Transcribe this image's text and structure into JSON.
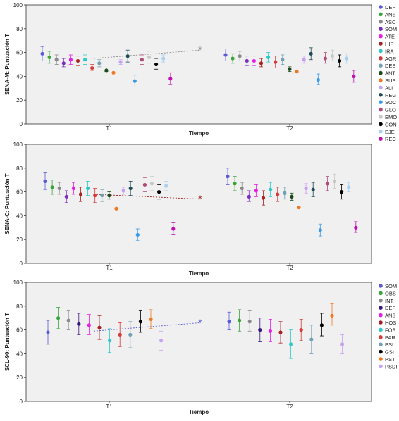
{
  "chart_data": [
    {
      "type": "scatter",
      "ylabel": "SENA-M: Puntuación T",
      "xlabel": "Tiempo",
      "categories": [
        "T1",
        "T2"
      ],
      "ylim": [
        0,
        100
      ],
      "yticks": [
        0,
        20,
        40,
        60,
        80,
        100
      ],
      "legend": "right",
      "mean_marker": {
        "T1": 55,
        "T2": 62,
        "color": "#888888"
      },
      "series": [
        {
          "name": "DEP",
          "color": "#5b5bd6",
          "T1": {
            "mean": 59,
            "lo": 53,
            "hi": 65
          },
          "T2": {
            "mean": 58,
            "lo": 53,
            "hi": 63
          }
        },
        {
          "name": "ANS",
          "color": "#3aa63a",
          "T1": {
            "mean": 56,
            "lo": 51,
            "hi": 61
          },
          "T2": {
            "mean": 55,
            "lo": 51,
            "hi": 59
          }
        },
        {
          "name": "ASC",
          "color": "#8a8a8a",
          "T1": {
            "mean": 54,
            "lo": 50,
            "hi": 58
          },
          "T2": {
            "mean": 57,
            "lo": 53,
            "hi": 61
          }
        },
        {
          "name": "SOM",
          "color": "#7a2ec0",
          "T1": {
            "mean": 51,
            "lo": 48,
            "hi": 55
          },
          "T2": {
            "mean": 53,
            "lo": 49,
            "hi": 57
          }
        },
        {
          "name": "ATE",
          "color": "#e61ee6",
          "T1": {
            "mean": 54,
            "lo": 50,
            "hi": 58
          },
          "T2": {
            "mean": 53,
            "lo": 49,
            "hi": 57
          }
        },
        {
          "name": "HIP",
          "color": "#aa1f1f",
          "T1": {
            "mean": 53,
            "lo": 49,
            "hi": 57
          },
          "T2": {
            "mean": 51,
            "lo": 48,
            "hi": 55
          }
        },
        {
          "name": "IRA",
          "color": "#2ec8c8",
          "T1": {
            "mean": 54,
            "lo": 50,
            "hi": 58
          },
          "T2": {
            "mean": 56,
            "lo": 52,
            "hi": 60
          }
        },
        {
          "name": "AGR",
          "color": "#d63a3a",
          "T1": {
            "mean": 47,
            "lo": 45,
            "hi": 50
          },
          "T2": {
            "mean": 52,
            "lo": 47,
            "hi": 57
          }
        },
        {
          "name": "DES",
          "color": "#6fa0b4",
          "T1": {
            "mean": 51,
            "lo": 48,
            "hi": 54
          },
          "T2": {
            "mean": 54,
            "lo": 50,
            "hi": 58
          }
        },
        {
          "name": "ANT",
          "color": "#1c4a1c",
          "T1": {
            "mean": 45,
            "lo": 44,
            "hi": 47
          },
          "T2": {
            "mean": 46,
            "lo": 44,
            "hi": 48
          }
        },
        {
          "name": "SUS",
          "color": "#f07820",
          "T1": {
            "mean": 43,
            "lo": 43,
            "hi": 43
          },
          "T2": {
            "mean": 44,
            "lo": 44,
            "hi": 44
          }
        },
        {
          "name": "ALI",
          "color": "#c8a0f0",
          "T1": {
            "mean": 52,
            "lo": 50,
            "hi": 54
          },
          "T2": {
            "mean": 54,
            "lo": 51,
            "hi": 57
          }
        },
        {
          "name": "REG",
          "color": "#1e4a5a",
          "T1": {
            "mean": 57,
            "lo": 52,
            "hi": 62
          },
          "T2": {
            "mean": 59,
            "lo": 54,
            "hi": 64
          }
        },
        {
          "name": "SOC",
          "color": "#3a9ae6",
          "T1": {
            "mean": 36,
            "lo": 31,
            "hi": 41
          },
          "T2": {
            "mean": 37,
            "lo": 33,
            "hi": 42
          }
        },
        {
          "name": "GLO",
          "color": "#b04a78",
          "T1": {
            "mean": 54,
            "lo": 50,
            "hi": 58
          },
          "T2": {
            "mean": 55,
            "lo": 51,
            "hi": 60
          }
        },
        {
          "name": "EMO",
          "color": "#c8c8c8",
          "T1": {
            "mean": 56,
            "lo": 51,
            "hi": 61
          },
          "T2": {
            "mean": 57,
            "lo": 53,
            "hi": 62
          }
        },
        {
          "name": "CON",
          "color": "#000000",
          "T1": {
            "mean": 50,
            "lo": 46,
            "hi": 55
          },
          "T2": {
            "mean": 53,
            "lo": 48,
            "hi": 58
          }
        },
        {
          "name": "EJE",
          "color": "#a8d0f0",
          "T1": {
            "mean": 55,
            "lo": 52,
            "hi": 58
          },
          "T2": {
            "mean": 55,
            "lo": 51,
            "hi": 59
          }
        },
        {
          "name": "REC",
          "color": "#c010b0",
          "T1": {
            "mean": 38,
            "lo": 33,
            "hi": 43
          },
          "T2": {
            "mean": 40,
            "lo": 35,
            "hi": 45
          }
        }
      ]
    },
    {
      "type": "scatter",
      "ylabel": "SENA-C: Puntuación T",
      "xlabel": "Tiempo",
      "categories": [
        "T1",
        "T2"
      ],
      "ylim": [
        0,
        100
      ],
      "yticks": [
        0,
        20,
        40,
        60,
        80,
        100
      ],
      "legend": "",
      "mean_marker": {
        "T1": 58,
        "T2": 54,
        "color": "#a02020"
      },
      "series": [
        {
          "name": "DEP",
          "color": "#5b5bd6",
          "T1": {
            "mean": 69,
            "lo": 62,
            "hi": 76
          },
          "T2": {
            "mean": 73,
            "lo": 66,
            "hi": 80
          }
        },
        {
          "name": "ANS",
          "color": "#3aa63a",
          "T1": {
            "mean": 64,
            "lo": 58,
            "hi": 70
          },
          "T2": {
            "mean": 67,
            "lo": 61,
            "hi": 73
          }
        },
        {
          "name": "ASC",
          "color": "#8a8a8a",
          "T1": {
            "mean": 63,
            "lo": 58,
            "hi": 68
          },
          "T2": {
            "mean": 63,
            "lo": 58,
            "hi": 68
          }
        },
        {
          "name": "SOM",
          "color": "#7a2ec0",
          "T1": {
            "mean": 56,
            "lo": 51,
            "hi": 61
          },
          "T2": {
            "mean": 56,
            "lo": 52,
            "hi": 61
          }
        },
        {
          "name": "ATE",
          "color": "#e61ee6",
          "T1": {
            "mean": 63,
            "lo": 58,
            "hi": 68
          },
          "T2": {
            "mean": 61,
            "lo": 56,
            "hi": 66
          }
        },
        {
          "name": "HIP",
          "color": "#aa1f1f",
          "T1": {
            "mean": 58,
            "lo": 52,
            "hi": 64
          },
          "T2": {
            "mean": 55,
            "lo": 49,
            "hi": 61
          }
        },
        {
          "name": "IRA",
          "color": "#2ec8c8",
          "T1": {
            "mean": 63,
            "lo": 57,
            "hi": 69
          },
          "T2": {
            "mean": 62,
            "lo": 56,
            "hi": 68
          }
        },
        {
          "name": "AGR",
          "color": "#d63a3a",
          "T1": {
            "mean": 57,
            "lo": 51,
            "hi": 63
          },
          "T2": {
            "mean": 58,
            "lo": 52,
            "hi": 64
          }
        },
        {
          "name": "DES",
          "color": "#6fa0b4",
          "T1": {
            "mean": 57,
            "lo": 52,
            "hi": 62
          },
          "T2": {
            "mean": 59,
            "lo": 54,
            "hi": 64
          }
        },
        {
          "name": "ANT",
          "color": "#1c4a1c",
          "T1": {
            "mean": 57,
            "lo": 54,
            "hi": 60
          },
          "T2": {
            "mean": 56,
            "lo": 53,
            "hi": 59
          }
        },
        {
          "name": "SUS",
          "color": "#f07820",
          "T1": {
            "mean": 46,
            "lo": 46,
            "hi": 46
          },
          "T2": {
            "mean": 47,
            "lo": 47,
            "hi": 47
          }
        },
        {
          "name": "ALI",
          "color": "#c8a0f0",
          "T1": {
            "mean": 61,
            "lo": 58,
            "hi": 64
          },
          "T2": {
            "mean": 63,
            "lo": 59,
            "hi": 67
          }
        },
        {
          "name": "REG",
          "color": "#1e4a5a",
          "T1": {
            "mean": 63,
            "lo": 57,
            "hi": 69
          },
          "T2": {
            "mean": 62,
            "lo": 56,
            "hi": 68
          }
        },
        {
          "name": "SOC",
          "color": "#3a9ae6",
          "T1": {
            "mean": 24,
            "lo": 19,
            "hi": 29
          },
          "T2": {
            "mean": 28,
            "lo": 23,
            "hi": 33
          }
        },
        {
          "name": "GLO",
          "color": "#b04a78",
          "T1": {
            "mean": 66,
            "lo": 60,
            "hi": 72
          },
          "T2": {
            "mean": 67,
            "lo": 61,
            "hi": 73
          }
        },
        {
          "name": "EMO",
          "color": "#c8c8c8",
          "T1": {
            "mean": 67,
            "lo": 61,
            "hi": 73
          },
          "T2": {
            "mean": 69,
            "lo": 63,
            "hi": 75
          }
        },
        {
          "name": "CON",
          "color": "#000000",
          "T1": {
            "mean": 60,
            "lo": 54,
            "hi": 66
          },
          "T2": {
            "mean": 60,
            "lo": 54,
            "hi": 66
          }
        },
        {
          "name": "EJE",
          "color": "#a8d0f0",
          "T1": {
            "mean": 65,
            "lo": 61,
            "hi": 69
          },
          "T2": {
            "mean": 64,
            "lo": 60,
            "hi": 68
          }
        },
        {
          "name": "REC",
          "color": "#c010b0",
          "T1": {
            "mean": 29,
            "lo": 24,
            "hi": 34
          },
          "T2": {
            "mean": 30,
            "lo": 26,
            "hi": 35
          }
        }
      ]
    },
    {
      "type": "scatter",
      "ylabel": "SCL-90: Puntuación T",
      "xlabel": "Tiempo",
      "categories": [
        "T1",
        "T2"
      ],
      "ylim": [
        0,
        100
      ],
      "yticks": [
        0,
        20,
        40,
        60,
        80,
        100
      ],
      "legend": "right",
      "mean_marker": {
        "T1": 59,
        "T2": 66,
        "color": "#5b5bd6"
      },
      "series": [
        {
          "name": "SOM",
          "color": "#5b5bd6",
          "T1": {
            "mean": 58,
            "lo": 48,
            "hi": 68
          },
          "T2": {
            "mean": 67,
            "lo": 60,
            "hi": 75
          }
        },
        {
          "name": "OBS",
          "color": "#3aa63a",
          "T1": {
            "mean": 70,
            "lo": 61,
            "hi": 79
          },
          "T2": {
            "mean": 68,
            "lo": 59,
            "hi": 77
          }
        },
        {
          "name": "INT",
          "color": "#8a8a8a",
          "T1": {
            "mean": 68,
            "lo": 60,
            "hi": 76
          },
          "T2": {
            "mean": 67,
            "lo": 59,
            "hi": 76
          }
        },
        {
          "name": "DEP",
          "color": "#3a1a80",
          "T1": {
            "mean": 65,
            "lo": 56,
            "hi": 74
          },
          "T2": {
            "mean": 60,
            "lo": 50,
            "hi": 70
          }
        },
        {
          "name": "ANS",
          "color": "#e61ee6",
          "T1": {
            "mean": 64,
            "lo": 56,
            "hi": 73
          },
          "T2": {
            "mean": 59,
            "lo": 50,
            "hi": 69
          }
        },
        {
          "name": "HOS",
          "color": "#aa1f1f",
          "T1": {
            "mean": 62,
            "lo": 52,
            "hi": 72
          },
          "T2": {
            "mean": 58,
            "lo": 49,
            "hi": 67
          }
        },
        {
          "name": "FOB",
          "color": "#2ec8c8",
          "T1": {
            "mean": 51,
            "lo": 41,
            "hi": 61
          },
          "T2": {
            "mean": 48,
            "lo": 36,
            "hi": 60
          }
        },
        {
          "name": "PAR",
          "color": "#d63a3a",
          "T1": {
            "mean": 56,
            "lo": 46,
            "hi": 66
          },
          "T2": {
            "mean": 60,
            "lo": 51,
            "hi": 69
          }
        },
        {
          "name": "PSI",
          "color": "#6fa0b4",
          "T1": {
            "mean": 56,
            "lo": 45,
            "hi": 67
          },
          "T2": {
            "mean": 52,
            "lo": 40,
            "hi": 64
          }
        },
        {
          "name": "GSI",
          "color": "#000000",
          "T1": {
            "mean": 67,
            "lo": 58,
            "hi": 76
          },
          "T2": {
            "mean": 64,
            "lo": 55,
            "hi": 74
          }
        },
        {
          "name": "PST",
          "color": "#f07820",
          "T1": {
            "mean": 69,
            "lo": 61,
            "hi": 77
          },
          "T2": {
            "mean": 72,
            "lo": 64,
            "hi": 82
          }
        },
        {
          "name": "PSDI",
          "color": "#c8a0f0",
          "T1": {
            "mean": 51,
            "lo": 43,
            "hi": 59
          },
          "T2": {
            "mean": 48,
            "lo": 40,
            "hi": 56
          }
        }
      ]
    }
  ]
}
